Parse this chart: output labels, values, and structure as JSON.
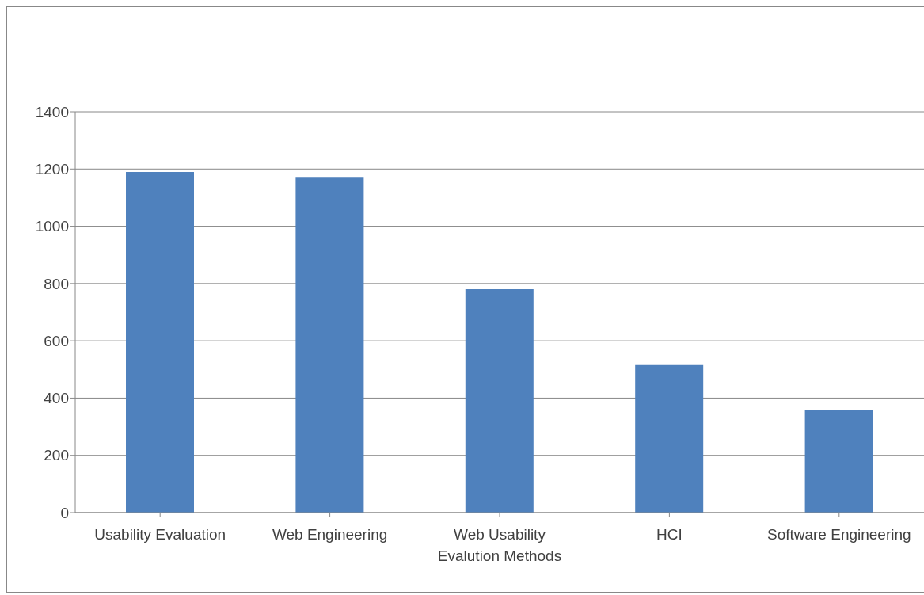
{
  "chart_data": {
    "type": "bar",
    "categories": [
      "Usability Evaluation",
      "Web Engineering",
      "Web Usability Evalution Methods",
      "HCI",
      "Software Engineering"
    ],
    "values": [
      1190,
      1170,
      780,
      515,
      360
    ],
    "color": "#4f81bd",
    "ylim": [
      0,
      1400
    ],
    "yticks": [
      0,
      200,
      400,
      600,
      800,
      1000,
      1200,
      1400
    ],
    "grid": "y",
    "legend": false
  }
}
